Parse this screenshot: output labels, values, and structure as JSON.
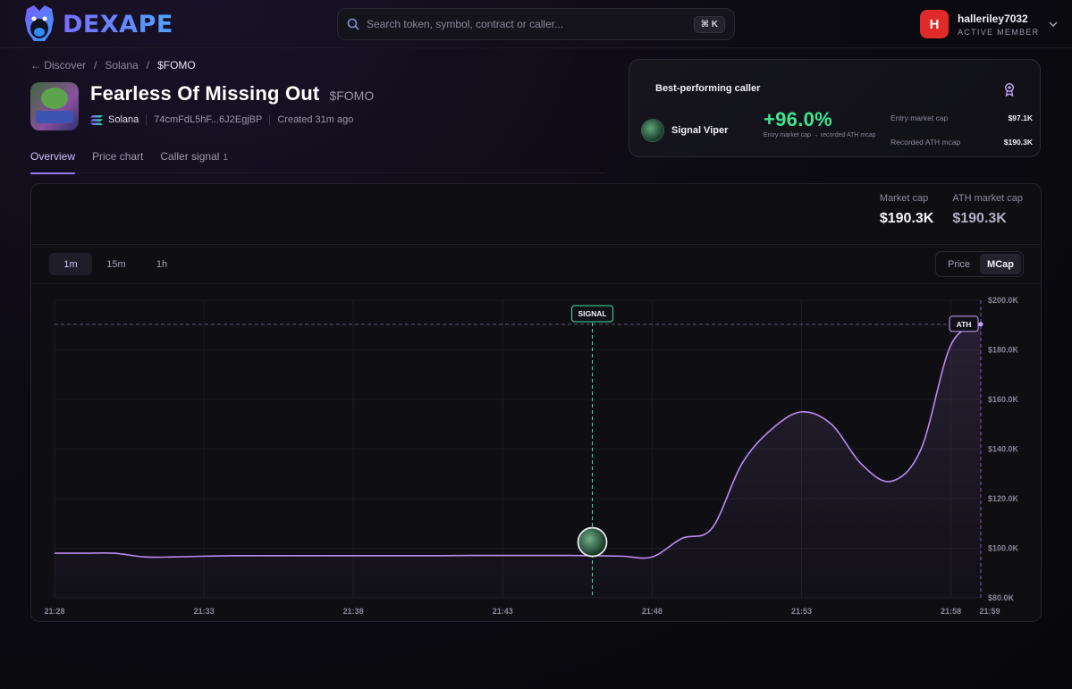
{
  "header": {
    "logo_text": "DEXAPE",
    "search_placeholder": "Search token, symbol, contract or caller...",
    "search_shortcut": "⌘ K",
    "user": {
      "avatar_letter": "H",
      "username": "halleriley7032",
      "role": "ACTIVE MEMBER",
      "avatar_color": "#e02a2a"
    }
  },
  "breadcrumb": {
    "back": "← Discover",
    "chain": "Solana",
    "current": "$FOMO"
  },
  "token": {
    "name": "Fearless Of Missing Out",
    "symbol": "$FOMO",
    "chain": "Solana",
    "address": "74cmFdL5hF...6J2EgjBP",
    "created": "Created 31m ago"
  },
  "tabs": [
    {
      "label": "Overview",
      "active": true
    },
    {
      "label": "Price chart"
    },
    {
      "label": "Caller signal",
      "count": "1"
    }
  ],
  "best_caller": {
    "title": "Best-performing caller",
    "name": "Signal Viper",
    "performance": "+96.0%",
    "performance_note": "Entry market cap → recorded ATH mcap",
    "entry_label": "Entry market cap",
    "entry_value": "$97.1K",
    "ath_label": "Recorded ATH mcap",
    "ath_value": "$190.3K",
    "accent": "#3ee58f"
  },
  "metrics": {
    "market_cap_label": "Market cap",
    "market_cap_value": "$190.3K",
    "ath_label": "ATH market cap",
    "ath_value": "$190.3K"
  },
  "intervals": [
    {
      "label": "1m",
      "active": true
    },
    {
      "label": "15m"
    },
    {
      "label": "1h"
    }
  ],
  "modes": [
    {
      "label": "Price"
    },
    {
      "label": "MCap",
      "active": true
    }
  ],
  "chart_data": {
    "type": "line",
    "y_unit": "USD market cap",
    "ylim": [
      80000,
      200000
    ],
    "y_ticks": [
      {
        "value": 200000,
        "label": "$200.0K"
      },
      {
        "value": 180000,
        "label": "$180.0K"
      },
      {
        "value": 160000,
        "label": "$160.0K"
      },
      {
        "value": 140000,
        "label": "$140.0K"
      },
      {
        "value": 120000,
        "label": "$120.0K"
      },
      {
        "value": 100000,
        "label": "$100.0K"
      },
      {
        "value": 80000,
        "label": "$80.0K"
      }
    ],
    "x_ticks": [
      "21:28",
      "21:33",
      "21:38",
      "21:43",
      "21:48",
      "21:53",
      "21:58",
      "21:59"
    ],
    "x_tick_minutes": [
      0,
      5,
      10,
      15,
      20,
      25,
      30,
      31
    ],
    "series": [
      {
        "points": [
          [
            0,
            98000
          ],
          [
            1,
            98000
          ],
          [
            2,
            98000
          ],
          [
            3,
            96500
          ],
          [
            4,
            96500
          ],
          [
            5,
            96800
          ],
          [
            6,
            97000
          ],
          [
            7,
            97000
          ],
          [
            8,
            97000
          ],
          [
            9,
            97000
          ],
          [
            10,
            97000
          ],
          [
            11,
            97000
          ],
          [
            12,
            97000
          ],
          [
            13,
            97000
          ],
          [
            14,
            97100
          ],
          [
            15,
            97100
          ],
          [
            16,
            97100
          ],
          [
            17,
            97100
          ],
          [
            18,
            97000
          ],
          [
            19,
            96800
          ],
          [
            20,
            96500
          ],
          [
            21,
            104000
          ],
          [
            22,
            108000
          ],
          [
            23,
            134000
          ],
          [
            24,
            148000
          ],
          [
            25,
            155000
          ],
          [
            26,
            150000
          ],
          [
            27,
            134000
          ],
          [
            28,
            127000
          ],
          [
            29,
            140000
          ],
          [
            30,
            182000
          ],
          [
            31,
            190300
          ]
        ]
      }
    ],
    "signal": {
      "x": 18,
      "label": "SIGNAL",
      "value": 97100
    },
    "ath": {
      "value": 190300,
      "label": "ATH"
    },
    "grid": true,
    "colors": {
      "line": "#b98cf2",
      "signal": "#3ee5a0",
      "ath": "#c9a8ff"
    }
  }
}
